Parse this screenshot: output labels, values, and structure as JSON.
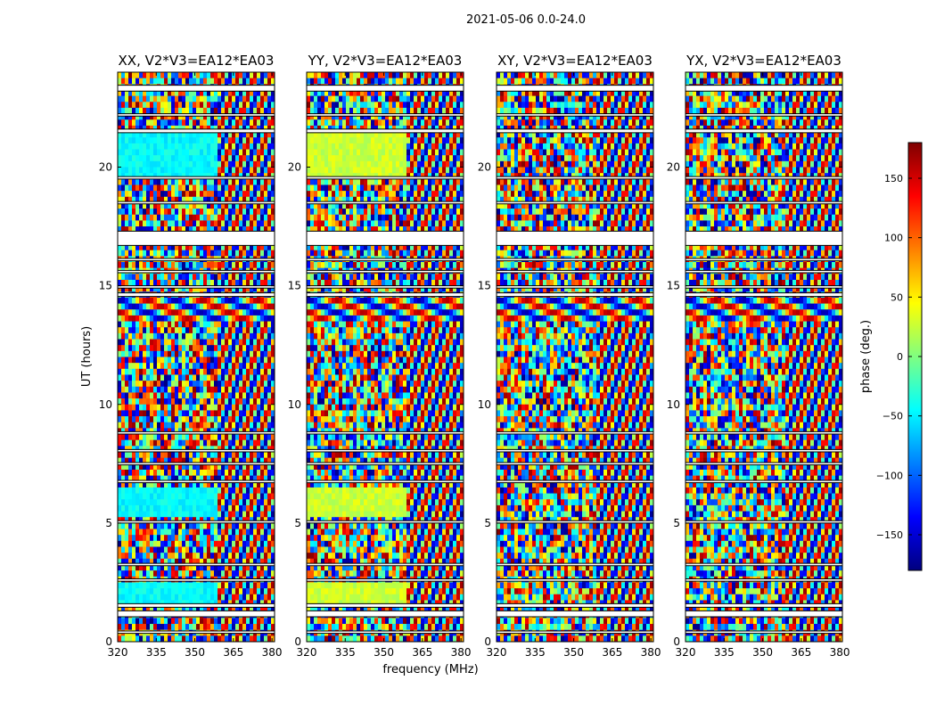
{
  "chart_data": {
    "type": "heatmap",
    "suptitle": "2021-05-06 0.0-24.0",
    "xlabel": "frequency (MHz)",
    "ylabel": "UT (hours)",
    "xlim": [
      320,
      381
    ],
    "ylim": [
      0,
      24
    ],
    "xticks": [
      320,
      335,
      350,
      365,
      380
    ],
    "yticks": [
      0,
      5,
      10,
      15,
      20
    ],
    "panels": [
      {
        "title": "XX, V2*V3=EA12*EA03",
        "pol": "XX"
      },
      {
        "title": "YY, V2*V3=EA12*EA03",
        "pol": "YY"
      },
      {
        "title": "XY, V2*V3=EA12*EA03",
        "pol": "XY"
      },
      {
        "title": "YX, V2*V3=EA12*EA03",
        "pol": "YX"
      }
    ],
    "blank_intervals_hours": [
      [
        0.35,
        0.45
      ],
      [
        1.05,
        1.3
      ],
      [
        1.45,
        1.6
      ],
      [
        2.55,
        2.65
      ],
      [
        3.2,
        3.3
      ],
      [
        5.0,
        5.1
      ],
      [
        6.7,
        6.8
      ],
      [
        7.45,
        7.55
      ],
      [
        8.0,
        8.1
      ],
      [
        8.75,
        8.85
      ],
      [
        14.55,
        14.7
      ],
      [
        14.9,
        15.0
      ],
      [
        15.55,
        15.65
      ],
      [
        16.05,
        16.15
      ],
      [
        16.7,
        17.3
      ],
      [
        18.45,
        18.55
      ],
      [
        19.5,
        19.6
      ],
      [
        21.45,
        21.6
      ],
      [
        22.15,
        22.25
      ],
      [
        23.2,
        23.45
      ]
    ],
    "colorbar": {
      "label": "phase (deg.)",
      "range": [
        -180,
        180
      ],
      "ticks": [
        150,
        100,
        50,
        0,
        -50,
        -100,
        -150
      ],
      "tick_labels": [
        "150",
        "100",
        "50",
        "0",
        "−50",
        "−100",
        "−150"
      ],
      "colormap": "jet",
      "colors": [
        "#00007f",
        "#0000ff",
        "#0080ff",
        "#00ffff",
        "#80ff80",
        "#ffff00",
        "#ff8000",
        "#ff0000",
        "#7f0000"
      ]
    }
  }
}
